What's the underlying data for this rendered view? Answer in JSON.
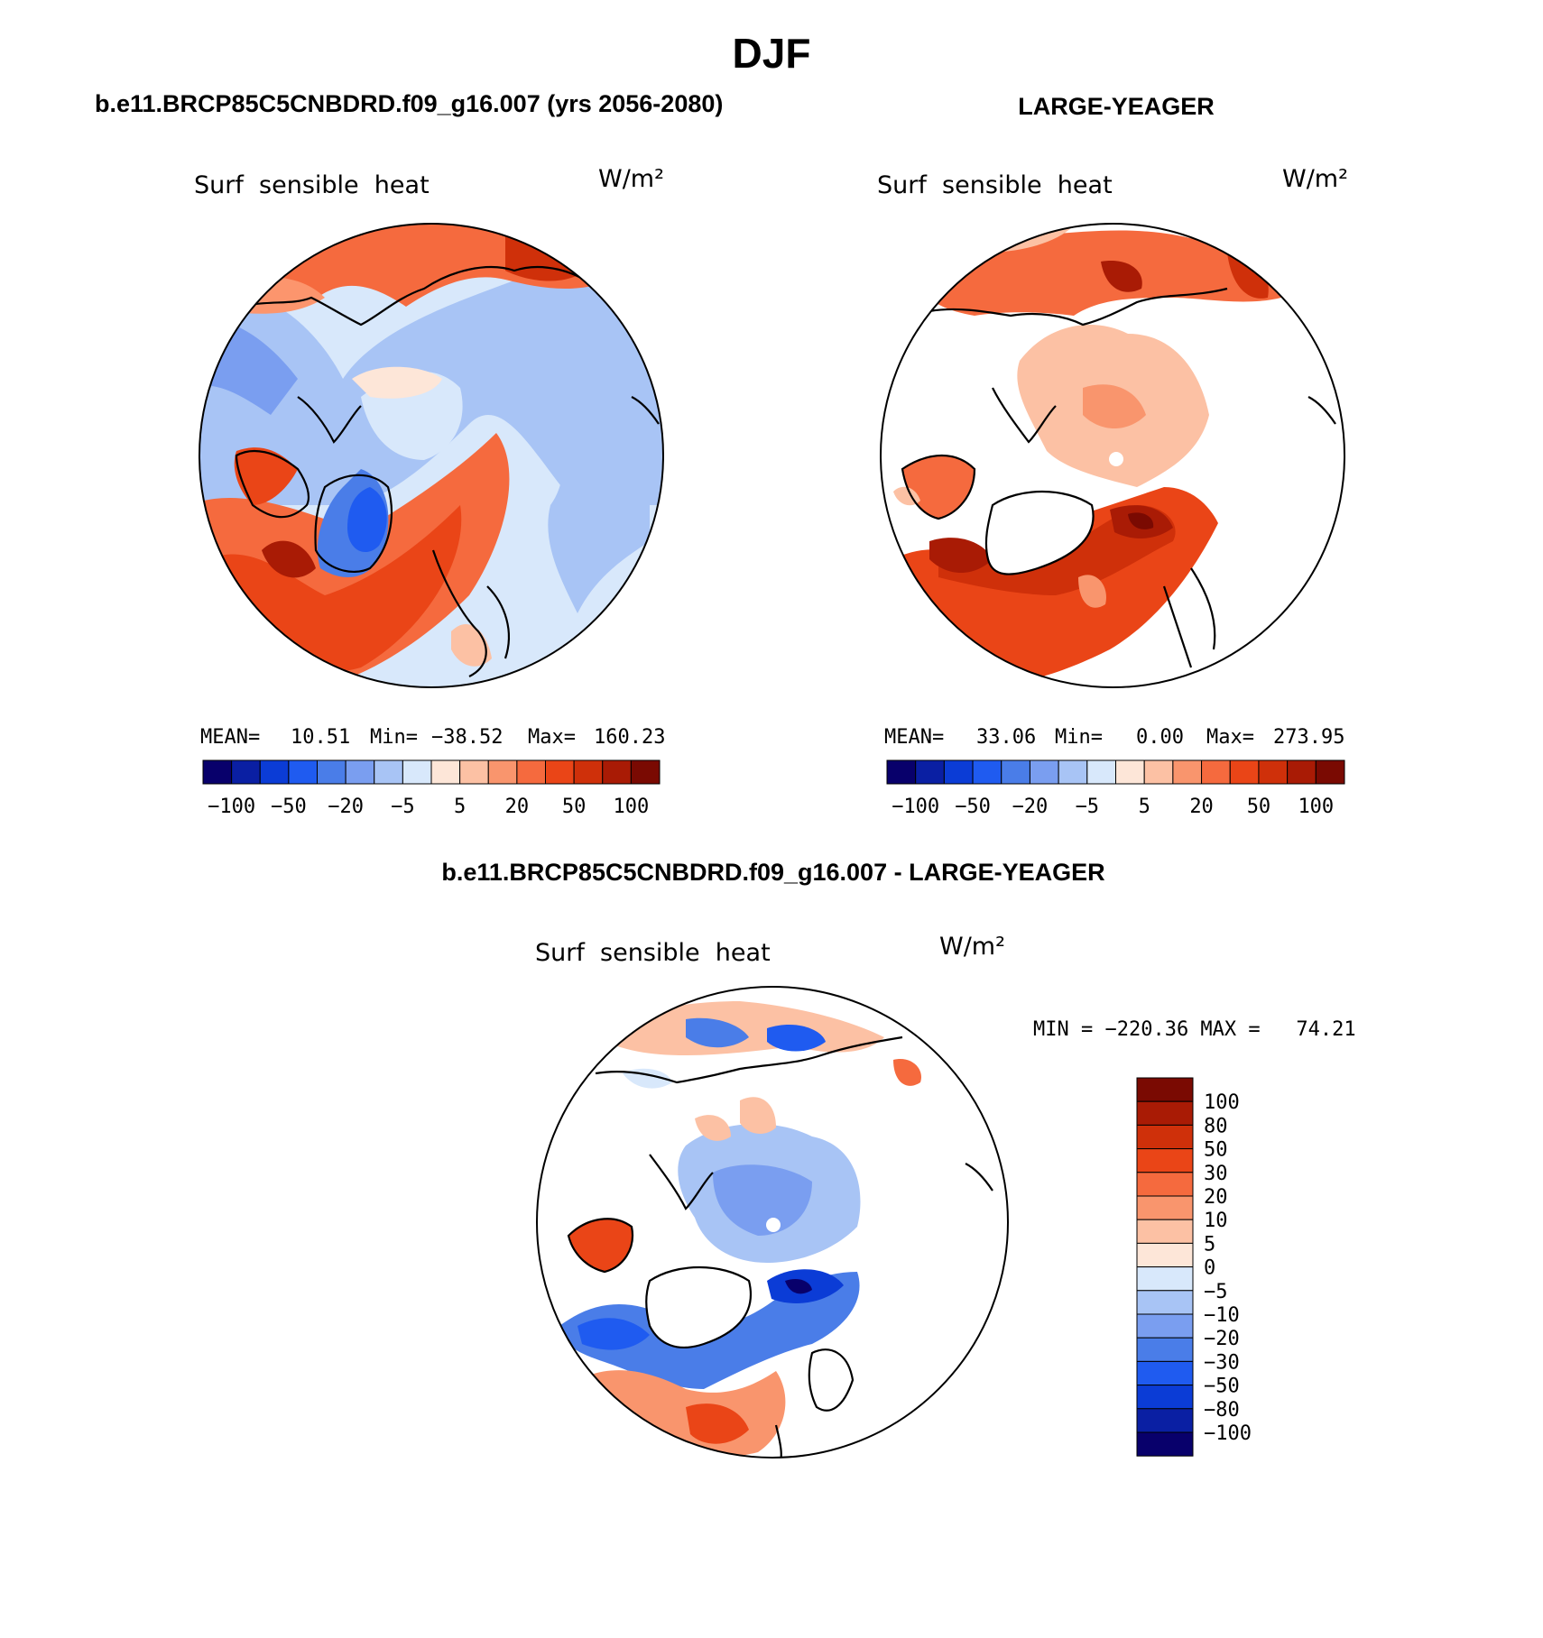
{
  "page_title": "DJF",
  "colors": {
    "palette": [
      "#08006b",
      "#0a1fa3",
      "#0b3cd6",
      "#1f5bf0",
      "#4a7de8",
      "#7a9ef0",
      "#a8c4f5",
      "#d8e8fb",
      "#fde6d8",
      "#fcc1a4",
      "#f9956d",
      "#f56a3e",
      "#ea4517",
      "#cf300a",
      "#a91b05",
      "#7a0a02"
    ],
    "land": "#ffffff",
    "coast": "#000000"
  },
  "panels": [
    {
      "title": "b.e11.BRCP85C5CNBDRD.f09_g16.007 (yrs 2056-2080)",
      "variable": "Surf  sensible  heat",
      "units": "W/m²",
      "stats": {
        "mean_label": "MEAN=",
        "mean": "10.51",
        "min_label": "Min=",
        "min": "−38.52",
        "max_label": "Max=",
        "max": "160.23"
      },
      "ticks": [
        "−100",
        "−50",
        "−20",
        "−5",
        "5",
        "20",
        "50",
        "100"
      ]
    },
    {
      "title": "LARGE-YEAGER",
      "variable": "Surf  sensible  heat",
      "units": "W/m²",
      "stats": {
        "mean_label": "MEAN=",
        "mean": "33.06",
        "min_label": "Min=",
        "min": "0.00",
        "max_label": "Max=",
        "max": "273.95"
      },
      "ticks": [
        "−100",
        "−50",
        "−20",
        "−5",
        "5",
        "20",
        "50",
        "100"
      ]
    },
    {
      "title": "b.e11.BRCP85C5CNBDRD.f09_g16.007 - LARGE-YEAGER",
      "variable": "Surf  sensible  heat",
      "units": "W/m²",
      "minmax": "MIN = −220.36 MAX =   74.21",
      "ticks": [
        "100",
        "80",
        "50",
        "30",
        "20",
        "10",
        "5",
        "0",
        "−5",
        "−10",
        "−20",
        "−30",
        "−50",
        "−80",
        "−100"
      ]
    }
  ]
}
